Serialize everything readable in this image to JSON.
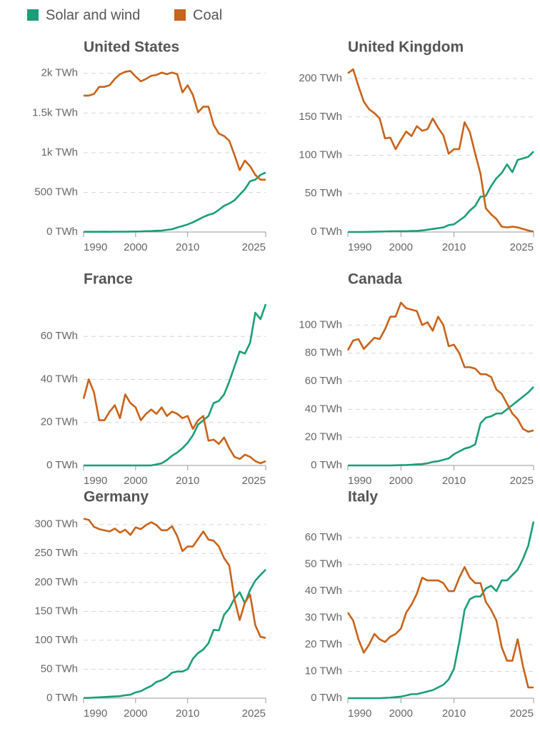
{
  "chart_data": [
    {
      "type": "line",
      "title": "United States",
      "x": [
        1990,
        1991,
        1992,
        1993,
        1994,
        1995,
        1996,
        1997,
        1998,
        1999,
        2000,
        2001,
        2002,
        2003,
        2004,
        2005,
        2006,
        2007,
        2008,
        2009,
        2010,
        2011,
        2012,
        2013,
        2014,
        2015,
        2016,
        2017,
        2018,
        2019,
        2020,
        2021,
        2022,
        2023,
        2024,
        2025
      ],
      "xlim": [
        1990,
        2025
      ],
      "xticks": [
        1990,
        2000,
        2010,
        2025
      ],
      "ylim": [
        0,
        2070
      ],
      "yticks": [
        {
          "value": 0,
          "label": "0 TWh"
        },
        {
          "value": 500,
          "label": "500 TWh"
        },
        {
          "value": 1000,
          "label": "1k TWh"
        },
        {
          "value": 1500,
          "label": "1.5k TWh"
        },
        {
          "value": 2000,
          "label": "2k TWh"
        }
      ],
      "grid": true,
      "series": [
        {
          "name": "Solar and wind",
          "color": "#1a9e77",
          "values": [
            3,
            3,
            3,
            3,
            4,
            3,
            4,
            4,
            4,
            5,
            6,
            7,
            11,
            12,
            15,
            18,
            27,
            35,
            56,
            75,
            95,
            122,
            155,
            188,
            216,
            235,
            280,
            330,
            360,
            400,
            470,
            540,
            640,
            660,
            720,
            750
          ]
        },
        {
          "name": "Coal",
          "color": "#c9621a",
          "values": [
            1720,
            1720,
            1740,
            1830,
            1830,
            1850,
            1930,
            1990,
            2020,
            2030,
            1960,
            1900,
            1930,
            1970,
            1980,
            2010,
            1990,
            2010,
            1990,
            1760,
            1850,
            1730,
            1510,
            1580,
            1580,
            1350,
            1240,
            1210,
            1150,
            970,
            780,
            900,
            830,
            720,
            660,
            660
          ]
        }
      ]
    },
    {
      "type": "line",
      "title": "United Kingdom",
      "x": [
        1990,
        1991,
        1992,
        1993,
        1994,
        1995,
        1996,
        1997,
        1998,
        1999,
        2000,
        2001,
        2002,
        2003,
        2004,
        2005,
        2006,
        2007,
        2008,
        2009,
        2010,
        2011,
        2012,
        2013,
        2014,
        2015,
        2016,
        2017,
        2018,
        2019,
        2020,
        2021,
        2022,
        2023,
        2024,
        2025
      ],
      "xlim": [
        1990,
        2025
      ],
      "xticks": [
        1990,
        2000,
        2010,
        2025
      ],
      "ylim": [
        0,
        214
      ],
      "yticks": [
        {
          "value": 0,
          "label": "0 TWh"
        },
        {
          "value": 50,
          "label": "50 TWh"
        },
        {
          "value": 100,
          "label": "100 TWh"
        },
        {
          "value": 150,
          "label": "150 TWh"
        },
        {
          "value": 200,
          "label": "200 TWh"
        }
      ],
      "grid": true,
      "series": [
        {
          "name": "Solar and wind",
          "color": "#1a9e77",
          "values": [
            0,
            0,
            0,
            0.1,
            0.2,
            0.4,
            0.5,
            0.7,
            0.9,
            1,
            1,
            1,
            1.3,
            1.5,
            2,
            3,
            4,
            5,
            6,
            9,
            10,
            15,
            20,
            28,
            34,
            46,
            47,
            60,
            70,
            77,
            88,
            78,
            94,
            96,
            98,
            105
          ]
        },
        {
          "name": "Coal",
          "color": "#c9621a",
          "values": [
            207,
            212,
            190,
            170,
            160,
            155,
            148,
            122,
            123,
            108,
            120,
            131,
            125,
            138,
            132,
            134,
            148,
            136,
            126,
            102,
            108,
            108,
            143,
            130,
            102,
            76,
            31,
            23,
            17,
            7,
            6,
            7,
            6,
            4,
            2,
            0.5
          ]
        }
      ]
    },
    {
      "type": "line",
      "title": "France",
      "x": [
        1990,
        1991,
        1992,
        1993,
        1994,
        1995,
        1996,
        1997,
        1998,
        1999,
        2000,
        2001,
        2002,
        2003,
        2004,
        2005,
        2006,
        2007,
        2008,
        2009,
        2010,
        2011,
        2012,
        2013,
        2014,
        2015,
        2016,
        2017,
        2018,
        2019,
        2020,
        2021,
        2022,
        2023,
        2024,
        2025
      ],
      "xlim": [
        1990,
        2025
      ],
      "xticks": [
        1990,
        2000,
        2010,
        2025
      ],
      "ylim": [
        0,
        77
      ],
      "yticks": [
        {
          "value": 0,
          "label": "0 TWh"
        },
        {
          "value": 20,
          "label": "20 TWh"
        },
        {
          "value": 40,
          "label": "40 TWh"
        },
        {
          "value": 60,
          "label": "60 TWh"
        }
      ],
      "grid": true,
      "series": [
        {
          "name": "Solar and wind",
          "color": "#1a9e77",
          "values": [
            0,
            0,
            0,
            0,
            0,
            0,
            0,
            0,
            0,
            0,
            0,
            0,
            0,
            0,
            0.5,
            1,
            2.5,
            4.5,
            6,
            8,
            10.5,
            14,
            19,
            21,
            23,
            29,
            30,
            33,
            39,
            46,
            53,
            52,
            57,
            71,
            68,
            75
          ]
        },
        {
          "name": "Coal",
          "color": "#c9621a",
          "values": [
            31,
            40,
            34,
            21,
            21,
            25,
            28,
            22,
            33,
            29,
            27,
            21,
            24,
            26,
            24,
            27,
            23,
            25,
            24,
            22,
            23,
            17,
            21,
            23,
            11.5,
            12,
            10,
            13,
            8,
            4,
            3,
            5,
            4,
            2,
            1,
            2
          ]
        }
      ]
    },
    {
      "type": "line",
      "title": "Canada",
      "x": [
        1990,
        1991,
        1992,
        1993,
        1994,
        1995,
        1996,
        1997,
        1998,
        1999,
        2000,
        2001,
        2002,
        2003,
        2004,
        2005,
        2006,
        2007,
        2008,
        2009,
        2010,
        2011,
        2012,
        2013,
        2014,
        2015,
        2016,
        2017,
        2018,
        2019,
        2020,
        2021,
        2022,
        2023,
        2024,
        2025
      ],
      "xlim": [
        1990,
        2025
      ],
      "xticks": [
        1990,
        2000,
        2010,
        2025
      ],
      "ylim": [
        0,
        118
      ],
      "yticks": [
        {
          "value": 0,
          "label": "0 TWh"
        },
        {
          "value": 20,
          "label": "20 TWh"
        },
        {
          "value": 40,
          "label": "40 TWh"
        },
        {
          "value": 60,
          "label": "60 TWh"
        },
        {
          "value": 80,
          "label": "80 TWh"
        },
        {
          "value": 100,
          "label": "100 TWh"
        }
      ],
      "grid": true,
      "series": [
        {
          "name": "Solar and wind",
          "color": "#1a9e77",
          "values": [
            0,
            0,
            0,
            0,
            0,
            0,
            0,
            0,
            0,
            0.1,
            0.2,
            0.3,
            0.5,
            0.8,
            1,
            1.5,
            2.5,
            3,
            4,
            5,
            8,
            10,
            12,
            13,
            15,
            30,
            34,
            35,
            37,
            37,
            40,
            43,
            46,
            49,
            52,
            56
          ]
        },
        {
          "name": "Coal",
          "color": "#c9621a",
          "values": [
            82,
            89,
            90,
            83,
            87,
            91,
            90,
            97,
            106,
            106,
            116,
            112,
            111,
            110,
            100,
            102,
            96,
            106,
            100,
            85,
            86,
            80,
            70,
            70,
            69,
            65,
            65,
            63,
            54,
            51,
            44,
            37,
            33,
            26,
            24,
            25
          ]
        }
      ]
    },
    {
      "type": "line",
      "title": "Germany",
      "x": [
        1990,
        1991,
        1992,
        1993,
        1994,
        1995,
        1996,
        1997,
        1998,
        1999,
        2000,
        2001,
        2002,
        2003,
        2004,
        2005,
        2006,
        2007,
        2008,
        2009,
        2010,
        2011,
        2012,
        2013,
        2014,
        2015,
        2016,
        2017,
        2018,
        2019,
        2020,
        2021,
        2022,
        2023,
        2024,
        2025
      ],
      "xlim": [
        1990,
        2025
      ],
      "xticks": [
        1990,
        2000,
        2010,
        2025
      ],
      "ylim": [
        0,
        312
      ],
      "yticks": [
        {
          "value": 0,
          "label": "0 TWh"
        },
        {
          "value": 50,
          "label": "50 TWh"
        },
        {
          "value": 100,
          "label": "100 TWh"
        },
        {
          "value": 150,
          "label": "150 TWh"
        },
        {
          "value": 200,
          "label": "200 TWh"
        },
        {
          "value": 250,
          "label": "250 TWh"
        },
        {
          "value": 300,
          "label": "300 TWh"
        }
      ],
      "grid": true,
      "series": [
        {
          "name": "Solar and wind",
          "color": "#1a9e77",
          "values": [
            0.3,
            0.5,
            1,
            1.5,
            2,
            2.5,
            3,
            3.5,
            5,
            6,
            10,
            12,
            17,
            21,
            28,
            31,
            36,
            44,
            46,
            46,
            50,
            68,
            78,
            84,
            95,
            118,
            117,
            144,
            155,
            172,
            183,
            164,
            187,
            203,
            213,
            222
          ]
        },
        {
          "name": "Coal",
          "color": "#c9621a",
          "values": [
            310,
            308,
            296,
            292,
            290,
            288,
            293,
            286,
            291,
            282,
            295,
            292,
            299,
            304,
            299,
            290,
            290,
            297,
            280,
            254,
            262,
            262,
            275,
            288,
            274,
            272,
            262,
            242,
            229,
            171,
            135,
            165,
            179,
            126,
            106,
            104
          ]
        }
      ]
    },
    {
      "type": "line",
      "title": "Italy",
      "x": [
        1990,
        1991,
        1992,
        1993,
        1994,
        1995,
        1996,
        1997,
        1998,
        1999,
        2000,
        2001,
        2002,
        2003,
        2004,
        2005,
        2006,
        2007,
        2008,
        2009,
        2010,
        2011,
        2012,
        2013,
        2014,
        2015,
        2016,
        2017,
        2018,
        2019,
        2020,
        2021,
        2022,
        2023,
        2024,
        2025
      ],
      "xlim": [
        1990,
        2025
      ],
      "xticks": [
        1990,
        2000,
        2010,
        2025
      ],
      "ylim": [
        0,
        67.5
      ],
      "yticks": [
        {
          "value": 0,
          "label": "0 TWh"
        },
        {
          "value": 10,
          "label": "10 TWh"
        },
        {
          "value": 20,
          "label": "20 TWh"
        },
        {
          "value": 30,
          "label": "30 TWh"
        },
        {
          "value": 40,
          "label": "40 TWh"
        },
        {
          "value": 50,
          "label": "50 TWh"
        },
        {
          "value": 60,
          "label": "60 TWh"
        }
      ],
      "grid": true,
      "series": [
        {
          "name": "Solar and wind",
          "color": "#1a9e77",
          "values": [
            0,
            0,
            0,
            0,
            0,
            0,
            0,
            0.1,
            0.2,
            0.4,
            0.6,
            1,
            1.5,
            1.5,
            2,
            2.5,
            3,
            4,
            5,
            7,
            11,
            21,
            33,
            37,
            38,
            38,
            41,
            42,
            40,
            44,
            44,
            46,
            48,
            52,
            57,
            66
          ]
        },
        {
          "name": "Coal",
          "color": "#c9621a",
          "values": [
            32,
            29,
            22,
            17,
            20,
            24,
            22,
            21,
            23,
            24,
            26,
            32,
            35,
            39,
            45,
            44,
            44,
            44,
            43,
            40,
            40,
            45,
            49,
            45,
            43,
            43,
            36,
            33,
            29,
            19,
            14,
            14,
            22,
            12,
            4,
            4
          ]
        }
      ]
    }
  ]
}
